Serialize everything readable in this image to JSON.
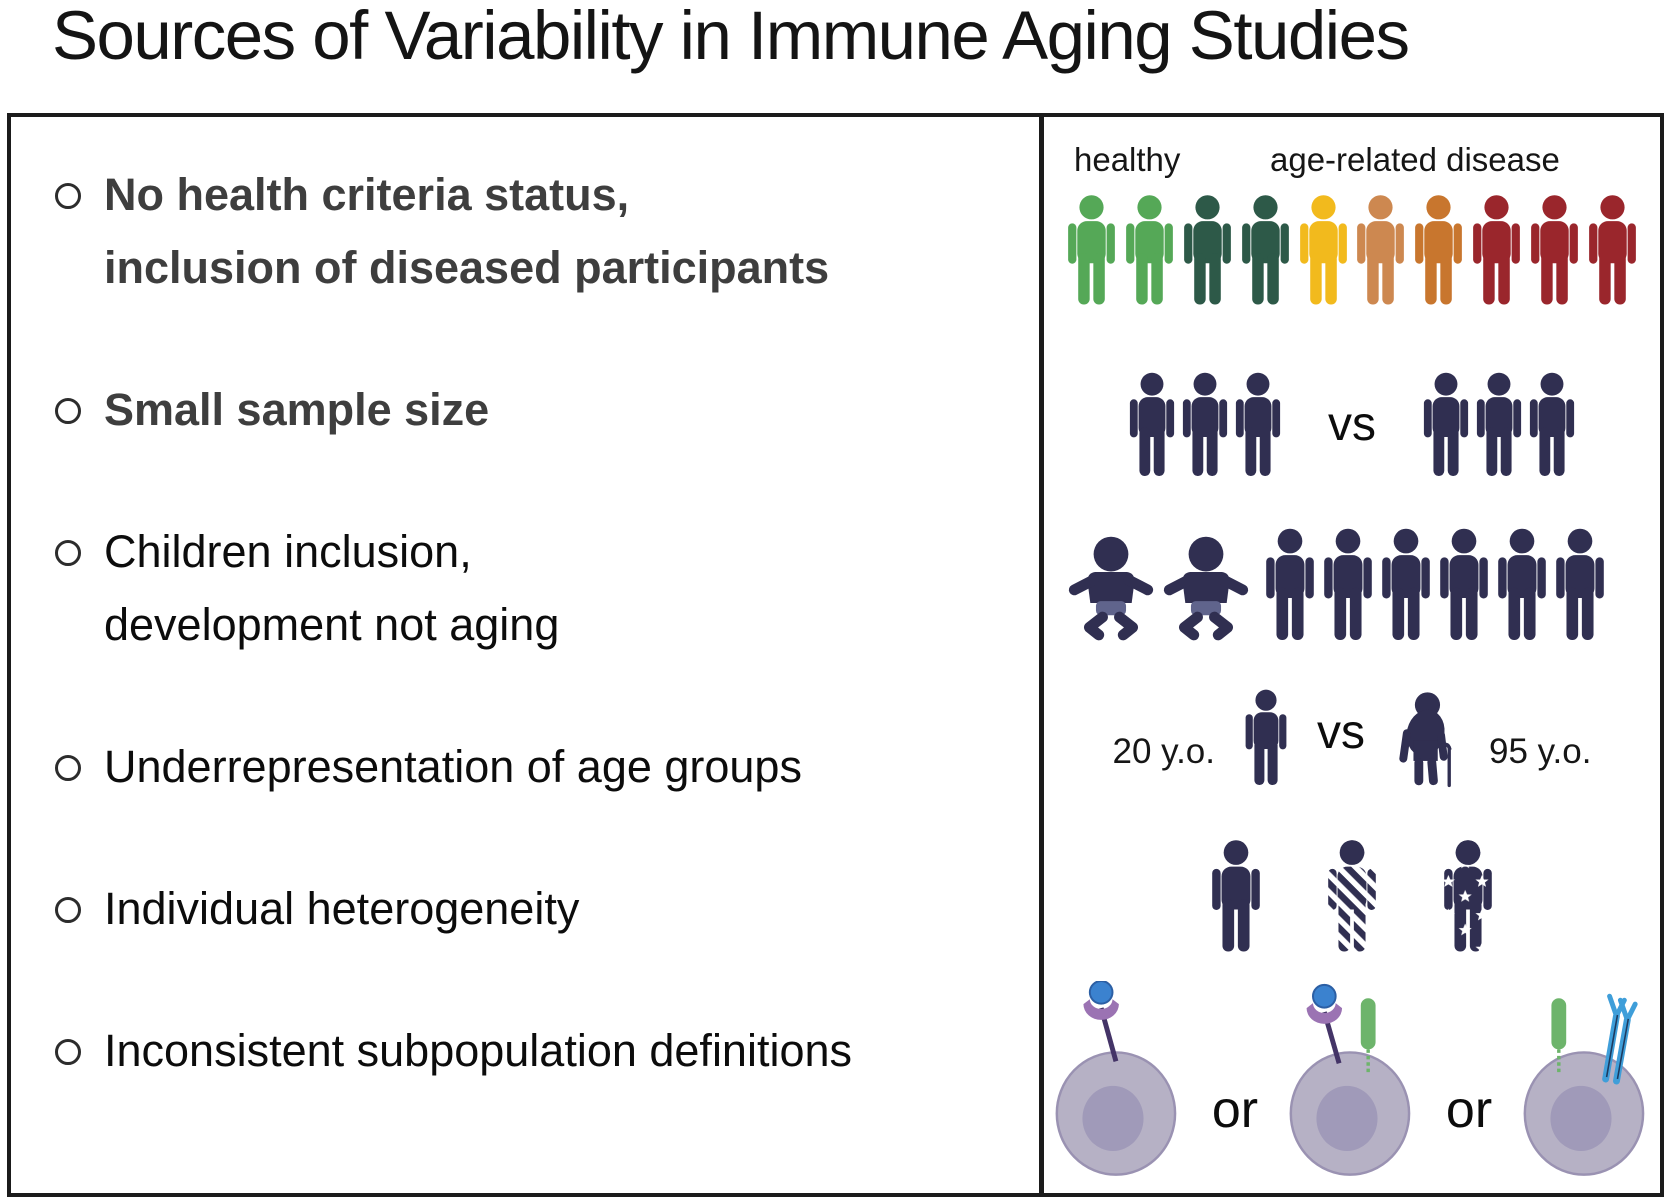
{
  "title": "Sources of Variability in Immune Aging Studies",
  "left_panel": {
    "bullets": [
      {
        "lines": [
          "No health criteria status,",
          "inclusion of diseased participants"
        ],
        "bold": true
      },
      {
        "lines": [
          "Small sample size"
        ],
        "bold": true
      },
      {
        "lines": [
          "Children inclusion,",
          "development not aging"
        ],
        "bold": false
      },
      {
        "lines": [
          "Underrepresentation of age groups"
        ],
        "bold": false
      },
      {
        "lines": [
          "Individual heterogeneity"
        ],
        "bold": false
      },
      {
        "lines": [
          "Inconsistent subpopulation definitions"
        ],
        "bold": false
      }
    ]
  },
  "right_panel": {
    "health_status_row": {
      "healthy_label": "healthy",
      "disease_label": "age-related disease",
      "person_colors": [
        "#55a857",
        "#55a857",
        "#2d5948",
        "#2d5948",
        "#f2ba1d",
        "#cd8850",
        "#c8762e",
        "#9a262c",
        "#9a262c",
        "#9a262c"
      ]
    },
    "sample_size_row": {
      "left_count": 3,
      "vs_label": "vs",
      "right_count": 3
    },
    "children_row": {
      "baby_count": 2,
      "adult_count": 6
    },
    "age_row": {
      "young_label": "20 y.o.",
      "vs_label": "vs",
      "old_label": "95 y.o."
    },
    "heterogeneity_row": {
      "patterns": [
        "solid",
        "striped",
        "stars"
      ]
    },
    "subpopulation_row": {
      "or_labels": [
        "or",
        "or"
      ],
      "cell_names": [
        "cell-with-ligand-bound-receptor",
        "cell-with-ligand-bound-receptor-and-green-receptor",
        "cell-with-green-receptor-and-antibody-receptor"
      ]
    }
  },
  "colors": {
    "navy": "#302f51",
    "diaper": "#60648c",
    "green": "#55a857",
    "dark_green": "#2d5948",
    "yellow": "#f2ba1d",
    "tan": "#cd8850",
    "orange": "#c8762e",
    "dark_red": "#9a262c",
    "border": "#1b1b1b",
    "bold_text": "#3e3e3e",
    "text": "#0c0c0c",
    "cell_body": "#b6b1c5",
    "cell_edge": "#9a92b2",
    "nucleus": "#a09ab9",
    "receptor_stem": "#443467",
    "receptor_cup": "#9b73b3",
    "ligand": "#3b82cf",
    "ligand_edge": "#2c5fa4",
    "green_receptor": "#6db46b",
    "antibody_blue": "#3f9ed9"
  }
}
